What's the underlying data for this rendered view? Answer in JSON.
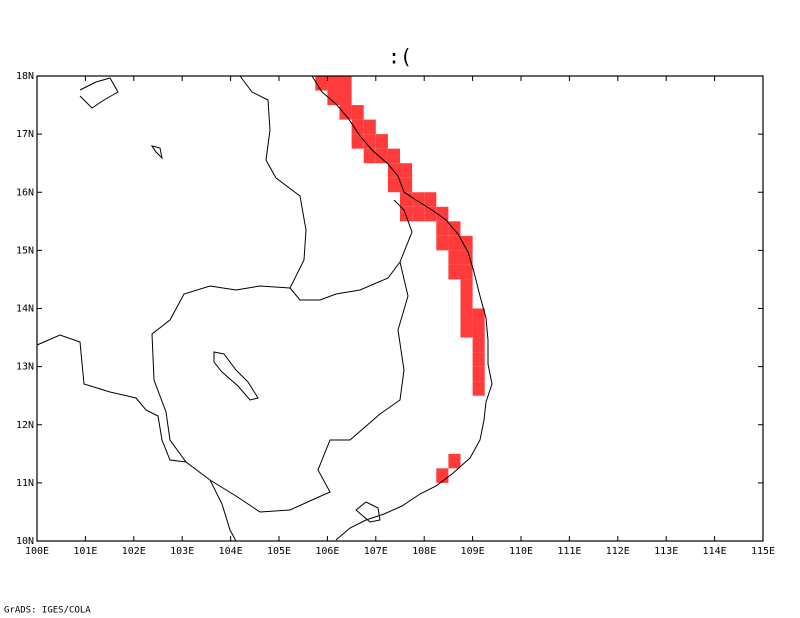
{
  "title": ":(",
  "footer": "GrADS: IGES/COLA",
  "color": "#ff3b3b",
  "lonlim": [
    100,
    115
  ],
  "latlim": [
    10,
    18
  ],
  "lonticks": [
    {
      "value": 100,
      "label": "100E"
    },
    {
      "value": 101,
      "label": "101E"
    },
    {
      "value": 102,
      "label": "102E"
    },
    {
      "value": 103,
      "label": "103E"
    },
    {
      "value": 104,
      "label": "104E"
    },
    {
      "value": 105,
      "label": "105E"
    },
    {
      "value": 106,
      "label": "106E"
    },
    {
      "value": 107,
      "label": "107E"
    },
    {
      "value": 108,
      "label": "108E"
    },
    {
      "value": 109,
      "label": "109E"
    },
    {
      "value": 110,
      "label": "110E"
    },
    {
      "value": 111,
      "label": "111E"
    },
    {
      "value": 112,
      "label": "112E"
    },
    {
      "value": 113,
      "label": "113E"
    },
    {
      "value": 114,
      "label": "114E"
    },
    {
      "value": 115,
      "label": "115E"
    }
  ],
  "latticks": [
    {
      "value": 10,
      "label": "10N"
    },
    {
      "value": 11,
      "label": "11N"
    },
    {
      "value": 12,
      "label": "12N"
    },
    {
      "value": 13,
      "label": "13N"
    },
    {
      "value": 14,
      "label": "14N"
    },
    {
      "value": 15,
      "label": "15N"
    },
    {
      "value": 16,
      "label": "16N"
    },
    {
      "value": 17,
      "label": "17N"
    },
    {
      "value": 18,
      "label": "18N"
    }
  ],
  "cells": [
    {
      "lon": 105.75,
      "lat": 17.75
    },
    {
      "lon": 106.0,
      "lat": 17.75
    },
    {
      "lon": 106.25,
      "lat": 17.75
    },
    {
      "lon": 106.0,
      "lat": 17.5
    },
    {
      "lon": 106.25,
      "lat": 17.5
    },
    {
      "lon": 106.25,
      "lat": 17.25
    },
    {
      "lon": 106.5,
      "lat": 17.25
    },
    {
      "lon": 106.5,
      "lat": 17.0
    },
    {
      "lon": 106.75,
      "lat": 17.0
    },
    {
      "lon": 106.5,
      "lat": 16.75
    },
    {
      "lon": 106.75,
      "lat": 16.75
    },
    {
      "lon": 107.0,
      "lat": 16.75
    },
    {
      "lon": 106.75,
      "lat": 16.5
    },
    {
      "lon": 107.0,
      "lat": 16.5
    },
    {
      "lon": 107.25,
      "lat": 16.5
    },
    {
      "lon": 107.25,
      "lat": 16.25
    },
    {
      "lon": 107.5,
      "lat": 16.25
    },
    {
      "lon": 107.25,
      "lat": 16.0
    },
    {
      "lon": 107.5,
      "lat": 16.0
    },
    {
      "lon": 107.5,
      "lat": 15.75
    },
    {
      "lon": 107.75,
      "lat": 15.75
    },
    {
      "lon": 108.0,
      "lat": 15.75
    },
    {
      "lon": 107.5,
      "lat": 15.5
    },
    {
      "lon": 107.75,
      "lat": 15.5
    },
    {
      "lon": 108.0,
      "lat": 15.5
    },
    {
      "lon": 108.25,
      "lat": 15.5
    },
    {
      "lon": 108.25,
      "lat": 15.25
    },
    {
      "lon": 108.5,
      "lat": 15.25
    },
    {
      "lon": 108.25,
      "lat": 15.0
    },
    {
      "lon": 108.5,
      "lat": 15.0
    },
    {
      "lon": 108.75,
      "lat": 15.0
    },
    {
      "lon": 108.5,
      "lat": 14.75
    },
    {
      "lon": 108.75,
      "lat": 14.75
    },
    {
      "lon": 108.5,
      "lat": 14.5
    },
    {
      "lon": 108.75,
      "lat": 14.5
    },
    {
      "lon": 108.75,
      "lat": 14.25
    },
    {
      "lon": 108.75,
      "lat": 14.0
    },
    {
      "lon": 108.75,
      "lat": 13.75
    },
    {
      "lon": 109.0,
      "lat": 13.75
    },
    {
      "lon": 108.75,
      "lat": 13.5
    },
    {
      "lon": 109.0,
      "lat": 13.5
    },
    {
      "lon": 109.0,
      "lat": 13.25
    },
    {
      "lon": 109.0,
      "lat": 13.0
    },
    {
      "lon": 109.0,
      "lat": 12.75
    },
    {
      "lon": 109.0,
      "lat": 12.5
    },
    {
      "lon": 108.5,
      "lat": 11.25
    },
    {
      "lon": 108.25,
      "lat": 11.0
    }
  ]
}
